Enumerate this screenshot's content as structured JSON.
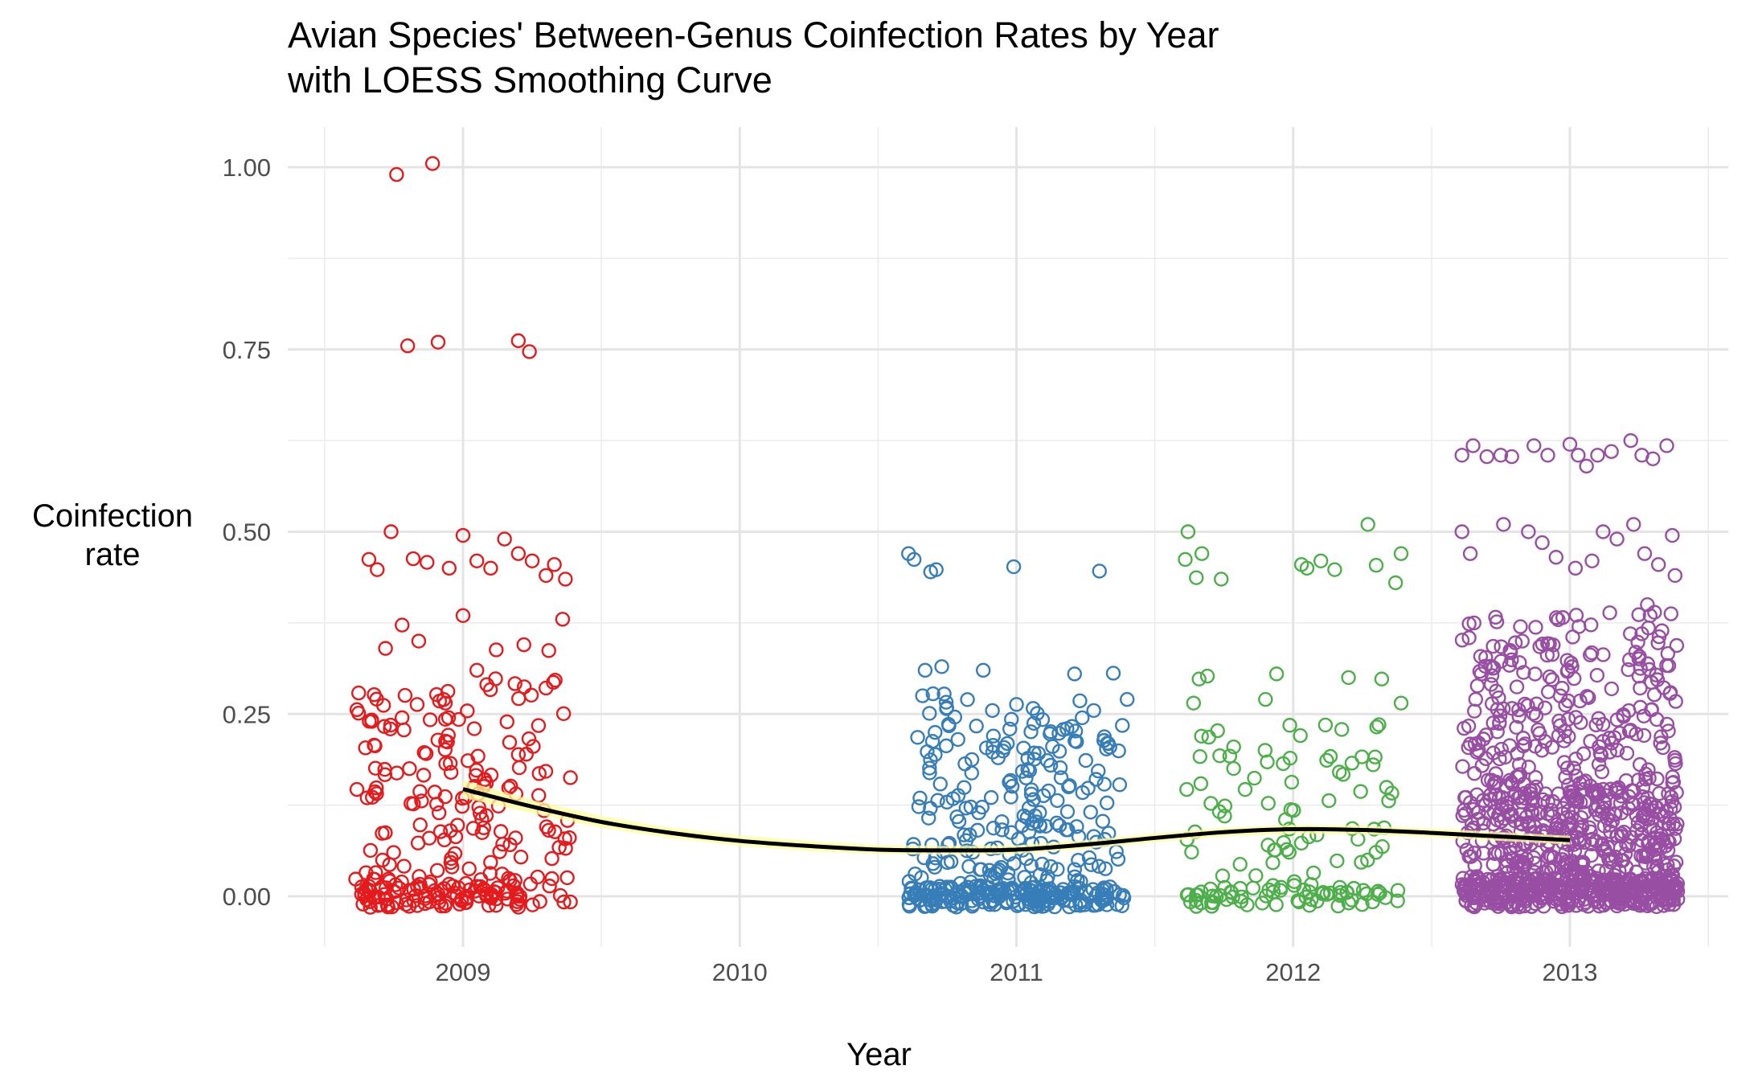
{
  "chart_data": {
    "type": "scatter",
    "title_line1": "Avian Species' Between-Genus Coinfection Rates by Year",
    "title_line2": "with LOESS Smoothing Curve",
    "xlabel": "Year",
    "ylabel_line1": "Coinfection",
    "ylabel_line2": "rate",
    "x_ticks": [
      "2009",
      "2010",
      "2011",
      "2012",
      "2013"
    ],
    "y_ticks": [
      "0.00",
      "0.25",
      "0.50",
      "0.75",
      "1.00"
    ],
    "xlim": [
      2008.5,
      2013.5
    ],
    "ylim": [
      -0.07,
      1.07
    ],
    "grid": true,
    "legend": "none",
    "series": [
      {
        "group": "2009",
        "color": "#E41A1C",
        "jitter_center": 2009,
        "points": [
          [
            2008.76,
            0.99
          ],
          [
            2008.89,
            1.005
          ],
          [
            2008.8,
            0.755
          ],
          [
            2008.91,
            0.76
          ],
          [
            2009.2,
            0.762
          ],
          [
            2009.24,
            0.747
          ],
          [
            2008.66,
            0.462
          ],
          [
            2008.69,
            0.448
          ],
          [
            2008.74,
            0.5
          ],
          [
            2008.82,
            0.463
          ],
          [
            2008.87,
            0.458
          ],
          [
            2008.95,
            0.45
          ],
          [
            2009.0,
            0.495
          ],
          [
            2009.05,
            0.46
          ],
          [
            2009.1,
            0.45
          ],
          [
            2009.15,
            0.49
          ],
          [
            2009.2,
            0.47
          ],
          [
            2009.25,
            0.46
          ],
          [
            2009.3,
            0.44
          ],
          [
            2009.33,
            0.455
          ],
          [
            2009.37,
            0.435
          ],
          [
            2009.0,
            0.385
          ],
          [
            2009.36,
            0.38
          ],
          [
            2008.78,
            0.372
          ],
          [
            2008.72,
            0.34
          ],
          [
            2008.84,
            0.35
          ],
          [
            2009.12,
            0.338
          ],
          [
            2009.22,
            0.345
          ],
          [
            2009.31,
            0.337
          ],
          [
            2009.05,
            0.31
          ]
        ],
        "bands": [
          {
            "from": 0.0,
            "to": 0.3,
            "count": 190,
            "seed": 11
          },
          {
            "from": -0.015,
            "to": 0.015,
            "count": 80,
            "seed": 12
          }
        ]
      },
      {
        "group": "2011",
        "color": "#377EB8",
        "jitter_center": 2011,
        "points": [
          [
            2010.61,
            0.47
          ],
          [
            2010.63,
            0.462
          ],
          [
            2010.69,
            0.445
          ],
          [
            2010.71,
            0.448
          ],
          [
            2010.99,
            0.452
          ],
          [
            2011.3,
            0.446
          ],
          [
            2010.67,
            0.31
          ],
          [
            2010.73,
            0.315
          ],
          [
            2010.88,
            0.31
          ],
          [
            2011.21,
            0.305
          ],
          [
            2011.35,
            0.306
          ],
          [
            2011.4,
            0.27
          ]
        ],
        "bands": [
          {
            "from": 0.0,
            "to": 0.28,
            "count": 230,
            "seed": 21
          },
          {
            "from": -0.015,
            "to": 0.015,
            "count": 170,
            "seed": 22
          }
        ]
      },
      {
        "group": "2012",
        "color": "#4DAF4A",
        "jitter_center": 2012,
        "points": [
          [
            2011.62,
            0.5
          ],
          [
            2011.61,
            0.462
          ],
          [
            2011.67,
            0.47
          ],
          [
            2011.65,
            0.437
          ],
          [
            2011.74,
            0.435
          ],
          [
            2012.03,
            0.455
          ],
          [
            2012.05,
            0.45
          ],
          [
            2012.1,
            0.46
          ],
          [
            2012.15,
            0.448
          ],
          [
            2012.27,
            0.51
          ],
          [
            2012.3,
            0.454
          ],
          [
            2012.39,
            0.47
          ],
          [
            2012.37,
            0.43
          ],
          [
            2011.66,
            0.298
          ],
          [
            2011.69,
            0.302
          ],
          [
            2011.94,
            0.305
          ],
          [
            2012.2,
            0.3
          ],
          [
            2012.32,
            0.298
          ],
          [
            2011.9,
            0.27
          ],
          [
            2012.39,
            0.265
          ],
          [
            2011.64,
            0.265
          ]
        ],
        "bands": [
          {
            "from": 0.0,
            "to": 0.24,
            "count": 80,
            "seed": 31
          },
          {
            "from": -0.015,
            "to": 0.015,
            "count": 60,
            "seed": 32
          }
        ]
      },
      {
        "group": "2013",
        "color": "#984EA3",
        "jitter_center": 2013,
        "points": [
          [
            2012.61,
            0.605
          ],
          [
            2012.65,
            0.618
          ],
          [
            2012.7,
            0.603
          ],
          [
            2012.75,
            0.605
          ],
          [
            2012.79,
            0.603
          ],
          [
            2012.87,
            0.618
          ],
          [
            2012.92,
            0.605
          ],
          [
            2013.0,
            0.62
          ],
          [
            2013.03,
            0.605
          ],
          [
            2013.06,
            0.59
          ],
          [
            2013.1,
            0.605
          ],
          [
            2013.15,
            0.61
          ],
          [
            2013.22,
            0.625
          ],
          [
            2013.26,
            0.605
          ],
          [
            2013.3,
            0.6
          ],
          [
            2013.35,
            0.618
          ],
          [
            2012.61,
            0.5
          ],
          [
            2012.64,
            0.47
          ],
          [
            2012.76,
            0.51
          ],
          [
            2012.85,
            0.5
          ],
          [
            2012.9,
            0.485
          ],
          [
            2012.95,
            0.465
          ],
          [
            2013.02,
            0.45
          ],
          [
            2013.08,
            0.46
          ],
          [
            2013.12,
            0.5
          ],
          [
            2013.17,
            0.49
          ],
          [
            2013.23,
            0.51
          ],
          [
            2013.27,
            0.47
          ],
          [
            2013.32,
            0.455
          ],
          [
            2013.37,
            0.495
          ],
          [
            2013.38,
            0.44
          ],
          [
            2013.28,
            0.4
          ],
          [
            2013.29,
            0.385
          ],
          [
            2013.26,
            0.36
          ]
        ],
        "bands": [
          {
            "from": 0.0,
            "to": 0.39,
            "count": 420,
            "seed": 41
          },
          {
            "from": 0.0,
            "to": 0.16,
            "count": 250,
            "seed": 42
          },
          {
            "from": -0.015,
            "to": 0.025,
            "count": 300,
            "seed": 43
          }
        ]
      }
    ],
    "loess": {
      "color": "#000000",
      "ribbon_color": "#FFFF99",
      "x": [
        2009.0,
        2009.25,
        2009.5,
        2009.75,
        2010.0,
        2010.25,
        2010.5,
        2010.75,
        2011.0,
        2011.25,
        2011.5,
        2011.75,
        2012.0,
        2012.25,
        2012.5,
        2012.75,
        2013.0
      ],
      "y": [
        0.147,
        0.123,
        0.102,
        0.087,
        0.076,
        0.069,
        0.064,
        0.063,
        0.064,
        0.071,
        0.08,
        0.088,
        0.092,
        0.091,
        0.087,
        0.082,
        0.077
      ],
      "se": [
        0.012,
        0.009,
        0.008,
        0.007,
        0.007,
        0.007,
        0.006,
        0.006,
        0.006,
        0.006,
        0.006,
        0.006,
        0.006,
        0.006,
        0.006,
        0.006,
        0.006
      ]
    }
  }
}
